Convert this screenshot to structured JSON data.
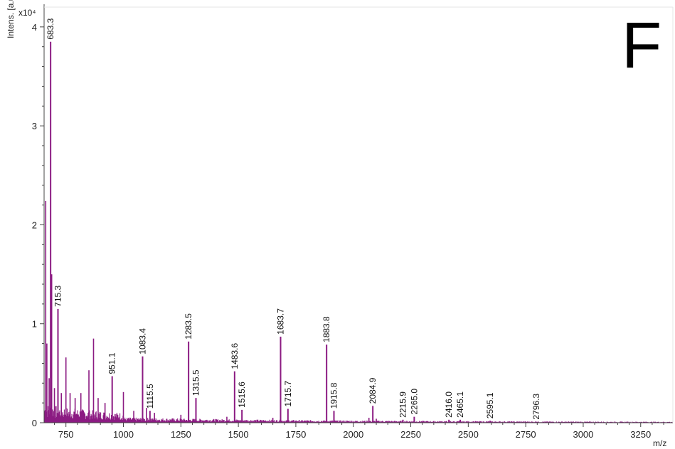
{
  "panel_label": "F",
  "chart_data": {
    "type": "line",
    "ylabel": "Intens. [a.u.]",
    "y_multiplier": "x10⁴",
    "xlabel": "m/z",
    "xlim": [
      655,
      3390
    ],
    "ylim": [
      0,
      4.2
    ],
    "x_ticks": [
      750,
      1000,
      1250,
      1500,
      1750,
      2000,
      2250,
      2500,
      2750,
      3000,
      3250
    ],
    "y_ticks": [
      0,
      1,
      2,
      3,
      4
    ],
    "grid": false,
    "series_color": "#8B1A82",
    "peaks": [
      {
        "x": 683.3,
        "y": 3.85,
        "label": "683.3"
      },
      {
        "x": 715.3,
        "y": 1.15,
        "label": "715.3"
      },
      {
        "x": 951.1,
        "y": 0.47,
        "label": "951.1"
      },
      {
        "x": 1083.4,
        "y": 0.67,
        "label": "1083.4"
      },
      {
        "x": 1115.5,
        "y": 0.12,
        "label": "1115.5"
      },
      {
        "x": 1283.5,
        "y": 0.82,
        "label": "1283.5"
      },
      {
        "x": 1315.5,
        "y": 0.25,
        "label": "1315.5"
      },
      {
        "x": 1483.6,
        "y": 0.52,
        "label": "1483.6"
      },
      {
        "x": 1515.6,
        "y": 0.13,
        "label": "1515.6"
      },
      {
        "x": 1683.7,
        "y": 0.87,
        "label": "1683.7"
      },
      {
        "x": 1715.7,
        "y": 0.14,
        "label": "1715.7"
      },
      {
        "x": 1883.8,
        "y": 0.79,
        "label": "1883.8"
      },
      {
        "x": 1915.8,
        "y": 0.12,
        "label": "1915.8"
      },
      {
        "x": 2084.9,
        "y": 0.17,
        "label": "2084.9"
      },
      {
        "x": 2215.9,
        "y": 0.03,
        "label": "2215.9"
      },
      {
        "x": 2265.0,
        "y": 0.06,
        "label": "2265.0"
      },
      {
        "x": 2416.0,
        "y": 0.03,
        "label": "2416.0"
      },
      {
        "x": 2465.1,
        "y": 0.03,
        "label": "2465.1"
      },
      {
        "x": 2595.1,
        "y": 0.02,
        "label": "2595.1"
      },
      {
        "x": 2796.3,
        "y": 0.01,
        "label": "2796.3"
      }
    ],
    "unlabeled_peaks": [
      {
        "x": 662,
        "y": 2.24
      },
      {
        "x": 667,
        "y": 0.8
      },
      {
        "x": 677,
        "y": 0.45
      },
      {
        "x": 688,
        "y": 1.5
      },
      {
        "x": 700,
        "y": 0.35
      },
      {
        "x": 730,
        "y": 0.3
      },
      {
        "x": 750,
        "y": 0.66
      },
      {
        "x": 768,
        "y": 0.3
      },
      {
        "x": 790,
        "y": 0.25
      },
      {
        "x": 815,
        "y": 0.3
      },
      {
        "x": 850,
        "y": 0.53
      },
      {
        "x": 870,
        "y": 0.85
      },
      {
        "x": 890,
        "y": 0.25
      },
      {
        "x": 920,
        "y": 0.2
      },
      {
        "x": 1000,
        "y": 0.31
      },
      {
        "x": 1045,
        "y": 0.12
      },
      {
        "x": 1100,
        "y": 0.15
      },
      {
        "x": 1135,
        "y": 0.1
      },
      {
        "x": 1250,
        "y": 0.08
      },
      {
        "x": 1450,
        "y": 0.06
      },
      {
        "x": 1650,
        "y": 0.05
      },
      {
        "x": 2068,
        "y": 0.05
      },
      {
        "x": 2100,
        "y": 0.04
      }
    ]
  }
}
